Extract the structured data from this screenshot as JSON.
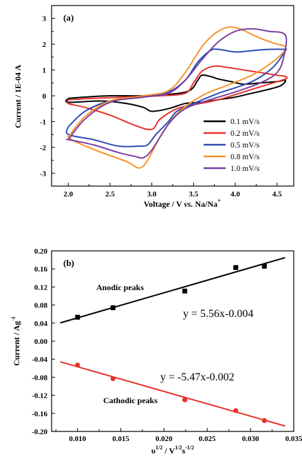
{
  "chart_data": [
    {
      "type": "line",
      "panel_label": "(a)",
      "xlabel": "Voltage / V vs. Na/Na+",
      "ylabel": "Current / 1E-04 A",
      "xlim": [
        1.8,
        4.7
      ],
      "ylim": [
        -3.5,
        3.5
      ],
      "xticks": [
        "2.0",
        "2.5",
        "3.0",
        "3.5",
        "4.0",
        "4.5"
      ],
      "yticks": [
        "3",
        "2",
        "1",
        "0",
        "-1",
        "-2",
        "-3"
      ],
      "legend": "lower-right",
      "series": [
        {
          "name": "0.1 mV/s",
          "color": "#000000",
          "x": [
            2.0,
            2.2,
            2.5,
            2.9,
            3.2,
            3.45,
            3.55,
            3.6,
            3.7,
            3.8,
            3.95,
            4.1,
            4.3,
            4.5,
            4.6,
            4.55,
            4.4,
            4.2,
            4.0,
            3.8,
            3.6,
            3.4,
            3.2,
            3.0,
            2.9,
            2.7,
            2.4,
            2.0
          ],
          "y": [
            -0.1,
            -0.05,
            0.0,
            0.0,
            0.05,
            0.2,
            0.6,
            0.8,
            0.75,
            0.65,
            0.55,
            0.45,
            0.5,
            0.55,
            0.6,
            0.4,
            0.25,
            0.1,
            -0.05,
            -0.15,
            -0.25,
            -0.3,
            -0.5,
            -0.6,
            -0.45,
            -0.3,
            -0.2,
            -0.25
          ]
        },
        {
          "name": "0.2 mV/s",
          "color": "#e8312b",
          "x": [
            2.0,
            2.3,
            2.7,
            3.1,
            3.4,
            3.5,
            3.6,
            3.75,
            3.9,
            4.1,
            4.3,
            4.5,
            4.6,
            4.6,
            4.4,
            4.1,
            3.8,
            3.5,
            3.3,
            3.1,
            3.0,
            2.8,
            2.5,
            2.2,
            2.0
          ],
          "y": [
            -0.15,
            -0.1,
            -0.05,
            0.0,
            0.1,
            0.5,
            0.95,
            1.15,
            1.1,
            1.0,
            0.9,
            0.8,
            0.75,
            0.65,
            0.45,
            0.15,
            -0.15,
            -0.35,
            -0.5,
            -0.9,
            -1.3,
            -1.15,
            -0.75,
            -0.45,
            -0.3
          ]
        },
        {
          "name": "0.5 mV/s",
          "color": "#2c4bb5",
          "x": [
            2.0,
            2.2,
            2.5,
            2.9,
            3.2,
            3.4,
            3.55,
            3.7,
            3.8,
            4.0,
            4.2,
            4.4,
            4.58,
            4.6,
            4.45,
            4.2,
            3.8,
            3.5,
            3.3,
            3.2,
            3.05,
            2.95,
            2.85,
            2.6,
            2.3,
            2.0
          ],
          "y": [
            -1.2,
            -0.6,
            -0.2,
            -0.05,
            0.15,
            0.6,
            1.3,
            1.75,
            1.8,
            1.7,
            1.75,
            1.8,
            1.8,
            1.75,
            1.1,
            0.55,
            0.1,
            -0.3,
            -0.6,
            -1.0,
            -1.5,
            -1.9,
            -1.95,
            -1.95,
            -1.7,
            -1.5
          ]
        },
        {
          "name": "0.8 mV/s",
          "color": "#f7932a",
          "x": [
            2.0,
            2.2,
            2.5,
            2.9,
            3.2,
            3.4,
            3.6,
            3.75,
            3.9,
            4.05,
            4.25,
            4.45,
            4.6,
            4.55,
            4.4,
            4.2,
            3.9,
            3.6,
            3.3,
            3.1,
            2.95,
            2.85,
            2.7,
            2.4,
            2.1,
            2.0
          ],
          "y": [
            -1.6,
            -0.8,
            -0.2,
            0.0,
            0.2,
            0.9,
            1.9,
            2.4,
            2.65,
            2.6,
            2.3,
            2.05,
            1.9,
            1.6,
            1.2,
            0.8,
            0.4,
            0.0,
            -0.7,
            -1.6,
            -2.5,
            -2.8,
            -2.55,
            -2.2,
            -1.8,
            -1.6
          ]
        },
        {
          "name": "1.0 mV/s",
          "color": "#7b3fa0",
          "x": [
            2.0,
            2.2,
            2.5,
            2.9,
            3.2,
            3.4,
            3.6,
            3.8,
            4.0,
            4.2,
            4.4,
            4.6,
            4.58,
            4.5,
            4.3,
            4.0,
            3.7,
            3.4,
            3.2,
            3.0,
            2.9,
            2.8,
            2.6,
            2.3,
            2.0
          ],
          "y": [
            -1.7,
            -0.9,
            -0.25,
            -0.05,
            0.1,
            0.6,
            1.4,
            2.1,
            2.5,
            2.6,
            2.5,
            2.35,
            1.5,
            0.9,
            0.5,
            0.15,
            -0.15,
            -0.5,
            -1.1,
            -2.1,
            -2.4,
            -2.35,
            -2.2,
            -1.9,
            -1.7
          ]
        }
      ]
    },
    {
      "type": "scatter",
      "panel_label": "(b)",
      "xlabel": "υ1/2 / V1/2s-1/2",
      "ylabel": "Current / Ag-1",
      "xlim": [
        0.007,
        0.035
      ],
      "ylim": [
        -0.2,
        0.2
      ],
      "xticks": [
        "0.010",
        "0.015",
        "0.020",
        "0.025",
        "0.030",
        "0.035"
      ],
      "yticks": [
        "0.20",
        "0.16",
        "0.12",
        "0.08",
        "0.04",
        "0.00",
        "-0.04",
        "-0.08",
        "-0.12",
        "-0.16",
        "-0.20"
      ],
      "series": [
        {
          "name": "Anodic peaks",
          "color": "#000000",
          "marker": "square",
          "x": [
            0.01,
            0.0141,
            0.0224,
            0.0283,
            0.0316
          ],
          "y": [
            0.053,
            0.074,
            0.111,
            0.163,
            0.166
          ],
          "fit": "y = 5.56x-0.004",
          "fit_range": [
            0.008,
            0.034
          ]
        },
        {
          "name": "Cathodic peaks",
          "color": "#e8312b",
          "marker": "circle",
          "x": [
            0.01,
            0.0141,
            0.0224,
            0.0283,
            0.0316
          ],
          "y": [
            -0.053,
            -0.083,
            -0.13,
            -0.154,
            -0.176
          ],
          "fit": "y = -5.47x-0.002",
          "fit_range": [
            0.008,
            0.034
          ]
        }
      ]
    }
  ]
}
